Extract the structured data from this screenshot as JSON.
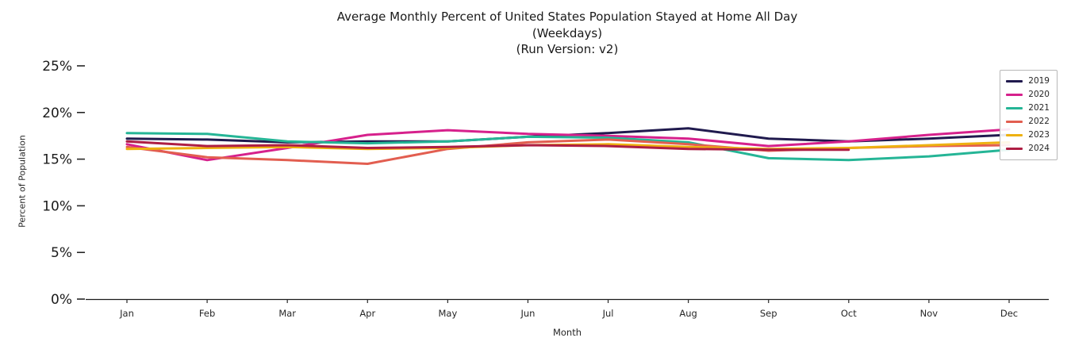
{
  "chart_data": {
    "type": "line",
    "title": "Average Monthly Percent of United States Population Stayed at Home All Day",
    "subtitle": "(Weekdays)",
    "run_version_line": "(Run Version: v2)",
    "xlabel": "Month",
    "ylabel": "Percent of Population",
    "categories": [
      "Jan",
      "Feb",
      "Mar",
      "Apr",
      "May",
      "Jun",
      "Jul",
      "Aug",
      "Sep",
      "Oct",
      "Nov",
      "Dec"
    ],
    "ylim": [
      0,
      25
    ],
    "ytick_labels": [
      "0%",
      "5%",
      "10%",
      "15%",
      "20%",
      "25%"
    ],
    "grid": false,
    "legend_position": "upper right",
    "series": [
      {
        "name": "2019",
        "color": "#201a4e",
        "values": [
          17.2,
          17.1,
          16.8,
          16.9,
          16.9,
          17.4,
          17.8,
          18.3,
          17.2,
          16.9,
          17.2,
          17.6
        ]
      },
      {
        "name": "2020",
        "color": "#d6218c",
        "values": [
          16.6,
          14.9,
          16.2,
          17.6,
          18.1,
          17.7,
          17.5,
          17.2,
          16.4,
          16.9,
          17.6,
          18.2
        ]
      },
      {
        "name": "2021",
        "color": "#25b596",
        "values": [
          17.8,
          17.7,
          16.9,
          16.7,
          16.9,
          17.4,
          17.3,
          16.8,
          15.1,
          14.9,
          15.3,
          16.0
        ]
      },
      {
        "name": "2022",
        "color": "#e25e50",
        "values": [
          16.3,
          15.2,
          14.9,
          14.5,
          16.1,
          16.8,
          17.1,
          16.6,
          15.9,
          16.2,
          16.4,
          16.5
        ]
      },
      {
        "name": "2023",
        "color": "#eeb111",
        "values": [
          16.1,
          16.2,
          16.3,
          16.1,
          16.2,
          16.5,
          16.6,
          16.3,
          16.1,
          16.2,
          16.5,
          16.8
        ]
      },
      {
        "name": "2024",
        "color": "#ae1e44",
        "values": [
          16.9,
          16.4,
          16.5,
          16.2,
          16.3,
          16.5,
          16.4,
          16.1,
          16.0,
          16.0,
          null,
          null
        ]
      }
    ]
  }
}
